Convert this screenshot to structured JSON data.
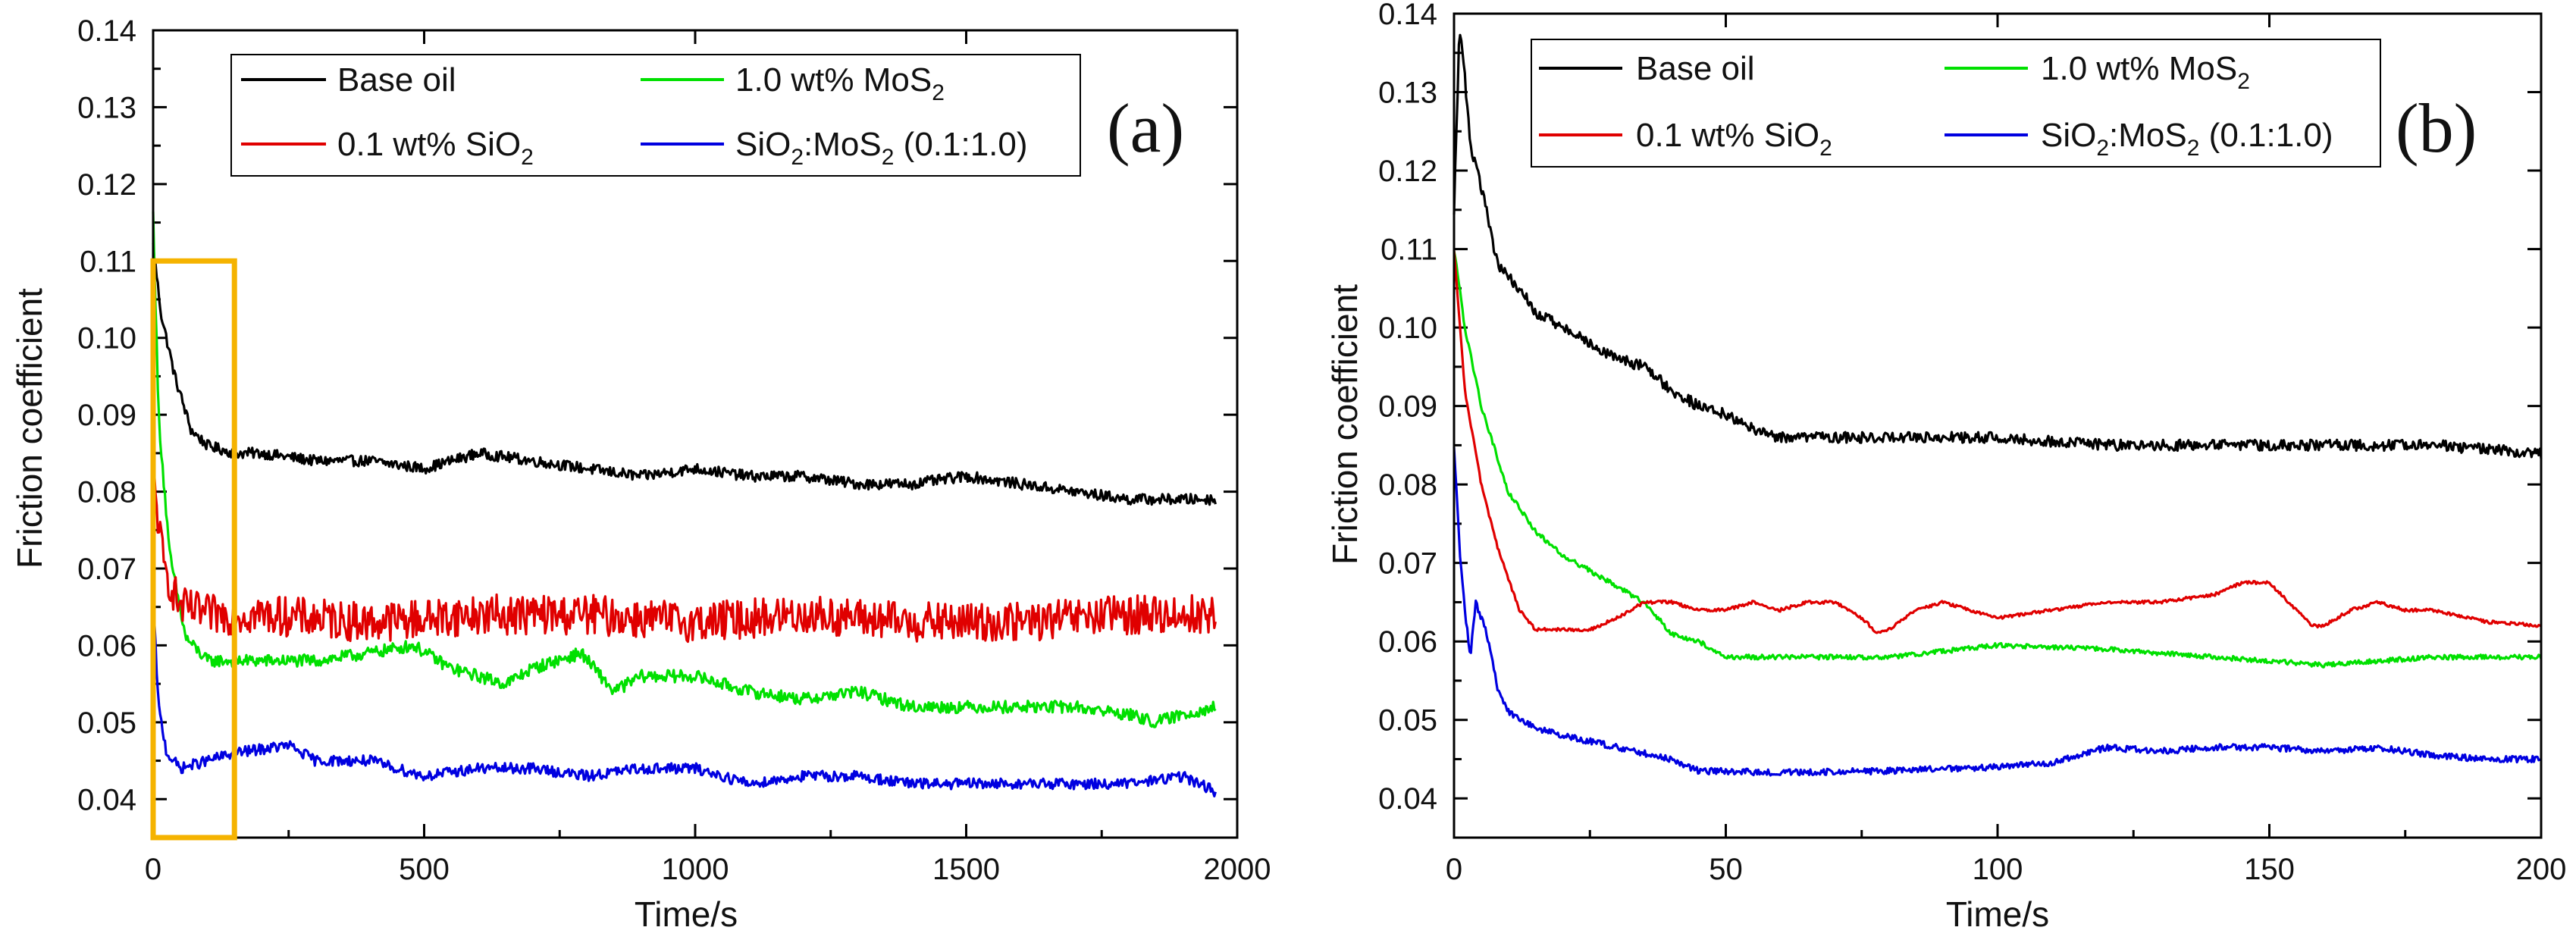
{
  "figure": {
    "charts": [
      {
        "id": "a",
        "panel_label": "(a)",
        "xlabel": "Time/s",
        "ylabel": "Friction coefficient",
        "xlim": [
          0,
          2000
        ],
        "ylim": [
          0.035,
          0.14
        ],
        "xticks": [
          "0",
          "500",
          "1000",
          "1500",
          "2000"
        ],
        "yticks": [
          "0.04",
          "0.05",
          "0.06",
          "0.07",
          "0.08",
          "0.09",
          "0.10",
          "0.11",
          "0.12",
          "0.13",
          "0.14"
        ]
      },
      {
        "id": "b",
        "panel_label": "(b)",
        "xlabel": "Time/s",
        "ylabel": "Friction coefficient",
        "xlim": [
          0,
          200
        ],
        "ylim": [
          0.035,
          0.14
        ],
        "xticks": [
          "0",
          "50",
          "100",
          "150",
          "200"
        ],
        "yticks": [
          "0.04",
          "0.05",
          "0.06",
          "0.07",
          "0.08",
          "0.09",
          "0.10",
          "0.11",
          "0.12",
          "0.13",
          "0.14"
        ]
      }
    ],
    "legend": [
      {
        "name": "Base oil",
        "color": "#000000",
        "main": "Base oil",
        "sub": "",
        "tail": ""
      },
      {
        "name": "1.0 wt% MoS2",
        "color": "#00e000",
        "main": "1.0 wt% MoS",
        "sub": "2",
        "tail": ""
      },
      {
        "name": "0.1 wt% SiO2",
        "color": "#e00000",
        "main": "0.1 wt% SiO",
        "sub": "2",
        "tail": ""
      },
      {
        "name": "SiO2:MoS2 (0.1:1.0)",
        "color": "#0000e0",
        "main": "SiO",
        "sub": "2",
        "main2": ":MoS",
        "sub2": "2",
        "tail": " (0.1:1.0)"
      }
    ],
    "highlight": {
      "label": "zoomed region",
      "x_range": [
        0,
        150
      ],
      "y_range": [
        0.035,
        0.11
      ],
      "color": "#f5b300"
    }
  },
  "chart_data": [
    {
      "type": "line",
      "title": "(a)",
      "xlabel": "Time/s",
      "ylabel": "Friction coefficient",
      "xlim": [
        0,
        2000
      ],
      "ylim": [
        0.035,
        0.14
      ],
      "series": [
        {
          "name": "Base oil",
          "color": "#000000",
          "noise": 0.0007,
          "points": [
            [
              0,
              0.112
            ],
            [
              15,
              0.103
            ],
            [
              40,
              0.095
            ],
            [
              70,
              0.088
            ],
            [
              100,
              0.086
            ],
            [
              150,
              0.085
            ],
            [
              200,
              0.085
            ],
            [
              300,
              0.084
            ],
            [
              400,
              0.084
            ],
            [
              500,
              0.083
            ],
            [
              600,
              0.085
            ],
            [
              700,
              0.084
            ],
            [
              800,
              0.083
            ],
            [
              900,
              0.082
            ],
            [
              1000,
              0.083
            ],
            [
              1100,
              0.082
            ],
            [
              1200,
              0.082
            ],
            [
              1300,
              0.081
            ],
            [
              1400,
              0.081
            ],
            [
              1500,
              0.082
            ],
            [
              1600,
              0.081
            ],
            [
              1700,
              0.08
            ],
            [
              1800,
              0.079
            ],
            [
              1900,
              0.079
            ],
            [
              1960,
              0.079
            ]
          ]
        },
        {
          "name": "1.0 wt% MoS2",
          "color": "#00e000",
          "noise": 0.0008,
          "points": [
            [
              0,
              0.116
            ],
            [
              10,
              0.09
            ],
            [
              30,
              0.072
            ],
            [
              60,
              0.061
            ],
            [
              100,
              0.058
            ],
            [
              200,
              0.058
            ],
            [
              300,
              0.058
            ],
            [
              400,
              0.059
            ],
            [
              480,
              0.06
            ],
            [
              550,
              0.057
            ],
            [
              650,
              0.055
            ],
            [
              700,
              0.057
            ],
            [
              790,
              0.059
            ],
            [
              850,
              0.054
            ],
            [
              900,
              0.056
            ],
            [
              1000,
              0.056
            ],
            [
              1100,
              0.054
            ],
            [
              1200,
              0.053
            ],
            [
              1300,
              0.054
            ],
            [
              1400,
              0.052
            ],
            [
              1500,
              0.052
            ],
            [
              1600,
              0.052
            ],
            [
              1700,
              0.052
            ],
            [
              1800,
              0.051
            ],
            [
              1850,
              0.05
            ],
            [
              1900,
              0.051
            ],
            [
              1960,
              0.052
            ]
          ]
        },
        {
          "name": "0.1 wt% SiO2",
          "color": "#e00000",
          "noise": 0.0026,
          "points": [
            [
              0,
              0.082
            ],
            [
              20,
              0.07
            ],
            [
              50,
              0.065
            ],
            [
              100,
              0.064
            ],
            [
              200,
              0.064
            ],
            [
              400,
              0.063
            ],
            [
              600,
              0.064
            ],
            [
              800,
              0.064
            ],
            [
              1000,
              0.063
            ],
            [
              1200,
              0.064
            ],
            [
              1400,
              0.063
            ],
            [
              1600,
              0.063
            ],
            [
              1800,
              0.064
            ],
            [
              1960,
              0.064
            ]
          ]
        },
        {
          "name": "SiO2:MoS2 (0.1:1.0)",
          "color": "#0000e0",
          "noise": 0.0007,
          "points": [
            [
              0,
              0.066
            ],
            [
              10,
              0.052
            ],
            [
              25,
              0.046
            ],
            [
              50,
              0.044
            ],
            [
              100,
              0.045
            ],
            [
              150,
              0.046
            ],
            [
              250,
              0.047
            ],
            [
              300,
              0.045
            ],
            [
              400,
              0.045
            ],
            [
              500,
              0.043
            ],
            [
              600,
              0.044
            ],
            [
              700,
              0.044
            ],
            [
              800,
              0.043
            ],
            [
              900,
              0.044
            ],
            [
              1000,
              0.044
            ],
            [
              1100,
              0.042
            ],
            [
              1200,
              0.043
            ],
            [
              1300,
              0.043
            ],
            [
              1400,
              0.042
            ],
            [
              1500,
              0.042
            ],
            [
              1600,
              0.042
            ],
            [
              1700,
              0.042
            ],
            [
              1800,
              0.042
            ],
            [
              1900,
              0.043
            ],
            [
              1960,
              0.041
            ]
          ]
        }
      ]
    },
    {
      "type": "line",
      "title": "(b)",
      "xlabel": "Time/s",
      "ylabel": "Friction coefficient",
      "xlim": [
        0,
        200
      ],
      "ylim": [
        0.035,
        0.14
      ],
      "series": [
        {
          "name": "Base oil",
          "color": "#000000",
          "noise": 0.0007,
          "points": [
            [
              0,
              0.115
            ],
            [
              1,
              0.138
            ],
            [
              2,
              0.132
            ],
            [
              3,
              0.123
            ],
            [
              5,
              0.118
            ],
            [
              8,
              0.108
            ],
            [
              12,
              0.105
            ],
            [
              15,
              0.102
            ],
            [
              20,
              0.1
            ],
            [
              25,
              0.098
            ],
            [
              30,
              0.096
            ],
            [
              35,
              0.095
            ],
            [
              40,
              0.092
            ],
            [
              45,
              0.09
            ],
            [
              50,
              0.089
            ],
            [
              55,
              0.087
            ],
            [
              60,
              0.086
            ],
            [
              70,
              0.086
            ],
            [
              80,
              0.086
            ],
            [
              100,
              0.086
            ],
            [
              120,
              0.085
            ],
            [
              140,
              0.085
            ],
            [
              160,
              0.085
            ],
            [
              180,
              0.085
            ],
            [
              200,
              0.084
            ]
          ]
        },
        {
          "name": "1.0 wt% MoS2",
          "color": "#00e000",
          "noise": 0.0003,
          "points": [
            [
              0,
              0.11
            ],
            [
              2,
              0.1
            ],
            [
              5,
              0.09
            ],
            [
              10,
              0.079
            ],
            [
              15,
              0.074
            ],
            [
              20,
              0.071
            ],
            [
              30,
              0.067
            ],
            [
              35,
              0.065
            ],
            [
              40,
              0.061
            ],
            [
              45,
              0.06
            ],
            [
              50,
              0.058
            ],
            [
              60,
              0.058
            ],
            [
              80,
              0.058
            ],
            [
              100,
              0.0595
            ],
            [
              120,
              0.059
            ],
            [
              140,
              0.058
            ],
            [
              160,
              0.057
            ],
            [
              180,
              0.058
            ],
            [
              200,
              0.058
            ]
          ]
        },
        {
          "name": "0.1 wt% SiO2",
          "color": "#e00000",
          "noise": 0.0002,
          "points": [
            [
              0,
              0.11
            ],
            [
              2,
              0.092
            ],
            [
              5,
              0.08
            ],
            [
              8,
              0.072
            ],
            [
              10,
              0.068
            ],
            [
              12,
              0.064
            ],
            [
              15,
              0.0615
            ],
            [
              20,
              0.0615
            ],
            [
              25,
              0.0615
            ],
            [
              30,
              0.063
            ],
            [
              35,
              0.065
            ],
            [
              40,
              0.065
            ],
            [
              45,
              0.064
            ],
            [
              50,
              0.064
            ],
            [
              55,
              0.065
            ],
            [
              60,
              0.064
            ],
            [
              65,
              0.065
            ],
            [
              70,
              0.065
            ],
            [
              75,
              0.063
            ],
            [
              78,
              0.061
            ],
            [
              80,
              0.0615
            ],
            [
              85,
              0.064
            ],
            [
              90,
              0.065
            ],
            [
              95,
              0.064
            ],
            [
              100,
              0.063
            ],
            [
              110,
              0.064
            ],
            [
              120,
              0.065
            ],
            [
              130,
              0.065
            ],
            [
              140,
              0.066
            ],
            [
              145,
              0.0675
            ],
            [
              150,
              0.0675
            ],
            [
              155,
              0.064
            ],
            [
              158,
              0.062
            ],
            [
              160,
              0.062
            ],
            [
              165,
              0.064
            ],
            [
              170,
              0.065
            ],
            [
              175,
              0.064
            ],
            [
              180,
              0.064
            ],
            [
              190,
              0.0625
            ],
            [
              200,
              0.062
            ]
          ]
        },
        {
          "name": "SiO2:MoS2 (0.1:1.0)",
          "color": "#0000e0",
          "noise": 0.0004,
          "points": [
            [
              0,
              0.085
            ],
            [
              1,
              0.072
            ],
            [
              2,
              0.064
            ],
            [
              3,
              0.058
            ],
            [
              4,
              0.065
            ],
            [
              5,
              0.063
            ],
            [
              6,
              0.061
            ],
            [
              8,
              0.054
            ],
            [
              10,
              0.051
            ],
            [
              15,
              0.049
            ],
            [
              20,
              0.048
            ],
            [
              30,
              0.0465
            ],
            [
              40,
              0.045
            ],
            [
              45,
              0.0435
            ],
            [
              60,
              0.0433
            ],
            [
              80,
              0.0435
            ],
            [
              100,
              0.044
            ],
            [
              110,
              0.0445
            ],
            [
              120,
              0.0465
            ],
            [
              130,
              0.046
            ],
            [
              140,
              0.0465
            ],
            [
              150,
              0.0465
            ],
            [
              160,
              0.046
            ],
            [
              170,
              0.0465
            ],
            [
              180,
              0.0455
            ],
            [
              190,
              0.045
            ],
            [
              200,
              0.045
            ]
          ]
        }
      ]
    }
  ]
}
